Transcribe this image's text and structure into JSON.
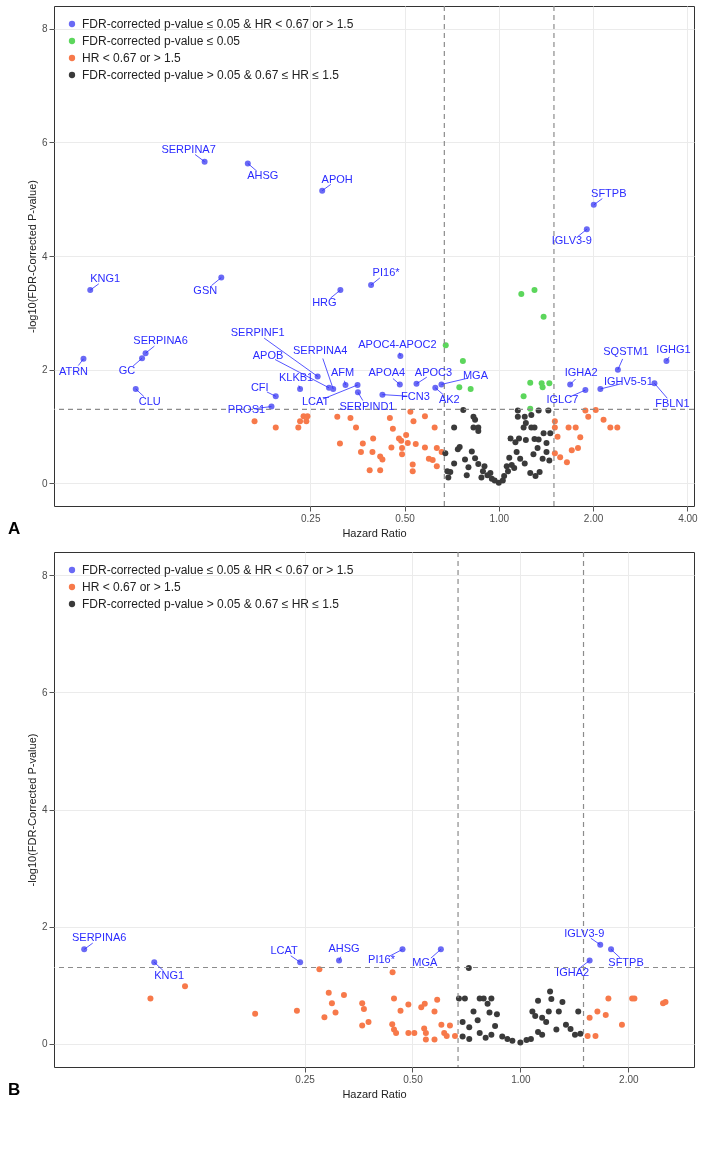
{
  "chart_data": [
    {
      "type": "scatter",
      "xlabel": "Hazard Ratio",
      "ylabel": "-log10(FDR-Corrected P-value)",
      "log": "x",
      "grid": true,
      "legend": "top left",
      "marker": "circle",
      "xlim": [
        0.038,
        4.2
      ],
      "ylim": [
        -0.4,
        8.4
      ],
      "xticks": [
        {
          "value": 0.25,
          "label": "0.25"
        },
        {
          "value": 0.5,
          "label": "0.50"
        },
        {
          "value": 1,
          "label": "1.00"
        },
        {
          "value": 2,
          "label": "2.00"
        },
        {
          "value": 4,
          "label": "4.00"
        }
      ],
      "yticks": [
        0,
        2,
        4,
        6,
        8
      ],
      "series": [
        {
          "name": "FDR-corrected p-value ≤ 0.05 & HR < 0.67 or > 1.5",
          "color": "#6a6af5",
          "x": [
            0.115,
            0.158,
            0.273,
            0.0496,
            0.13,
            0.312,
            0.391,
            0.0472,
            0.0745,
            0.0726,
            0.0693,
            0.485,
            0.264,
            0.287,
            0.296,
            0.232,
            0.324,
            0.354,
            0.355,
            0.194,
            0.188,
            0.425,
            0.483,
            0.546,
            0.627,
            0.656,
            2.01,
            1.91,
            2.4,
            3.43,
            1.69,
            1.89,
            2.11,
            3.14
          ],
          "values": [
            5.66,
            5.63,
            5.15,
            3.4,
            3.62,
            3.4,
            3.49,
            2.19,
            2.29,
            2.2,
            1.66,
            2.24,
            1.88,
            1.68,
            1.66,
            1.66,
            1.73,
            1.73,
            1.6,
            1.53,
            1.35,
            1.56,
            1.74,
            1.75,
            1.68,
            1.74,
            4.9,
            4.47,
            2.0,
            2.15,
            1.74,
            1.64,
            1.66,
            1.76
          ]
        },
        {
          "name": "FDR-corrected p-value ≤ 0.05",
          "color": "#5cd65c",
          "x": [
            0.677,
            0.768,
            0.748,
            0.813,
            1.18,
            1.3,
            1.39,
            1.26,
            1.37,
            1.38,
            1.45,
            1.2,
            1.26
          ],
          "values": [
            2.43,
            2.15,
            1.69,
            1.66,
            3.33,
            3.4,
            2.93,
            1.77,
            1.76,
            1.69,
            1.76,
            1.53,
            1.31
          ]
        },
        {
          "name": "HR < 0.67 or > 1.5",
          "color": "#f7794a",
          "x": [
            0.166,
            0.194,
            0.229,
            0.232,
            0.238,
            0.243,
            0.245,
            0.305,
            0.311,
            0.336,
            0.35,
            0.368,
            0.397,
            0.363,
            0.395,
            0.418,
            0.425,
            0.387,
            0.418,
            0.449,
            0.459,
            0.454,
            0.48,
            0.488,
            0.491,
            0.491,
            0.506,
            0.512,
            0.522,
            0.534,
            0.531,
            0.531,
            0.543,
            0.581,
            0.581,
            0.598,
            0.615,
            0.634,
            0.634,
            0.624,
            0.657,
            1.51,
            1.51,
            1.54,
            1.51,
            1.57,
            1.65,
            1.67,
            1.76,
            1.82,
            1.79,
            1.71,
            1.89,
            1.93,
            2.04,
            2.16,
            2.27,
            2.39
          ],
          "values": [
            1.09,
            0.98,
            0.98,
            1.09,
            1.18,
            1.09,
            1.18,
            1.17,
            0.7,
            1.15,
            0.98,
            0.7,
            0.79,
            0.55,
            0.55,
            0.47,
            0.42,
            0.23,
            0.23,
            1.15,
            0.96,
            0.63,
            0.79,
            0.75,
            0.62,
            0.51,
            0.85,
            0.71,
            1.26,
            1.09,
            0.33,
            0.21,
            0.69,
            1.18,
            0.63,
            0.43,
            0.41,
            0.62,
            0.3,
            0.98,
            0.55,
            1.09,
            0.98,
            0.82,
            0.53,
            0.46,
            0.37,
            0.98,
            0.98,
            0.81,
            0.62,
            0.58,
            1.28,
            1.17,
            1.29,
            1.12,
            0.98,
            0.98
          ]
        },
        {
          "name": "FDR-corrected p-value > 0.05 & 0.67 ≤ HR ≤ 1.5",
          "color": "#3a3a3a",
          "x": [
            0.77,
            0.72,
            0.83,
            0.84,
            0.83,
            0.86,
            0.86,
            0.75,
            0.74,
            0.675,
            0.685,
            0.7,
            0.79,
            0.82,
            0.84,
            0.86,
            0.89,
            0.92,
            0.95,
            1.0,
            1.15,
            1.15,
            1.21,
            1.27,
            1.34,
            1.44,
            1.3,
            1.2,
            1.22,
            1.27,
            1.09,
            1.13,
            1.16,
            1.22,
            1.3,
            1.34,
            1.39,
            1.42,
            1.46,
            1.33,
            1.29,
            1.17,
            1.1,
            1.07,
            1.04,
            1.12,
            1.21,
            1.31,
            1.26,
            1.38,
            1.42,
            0.72,
            0.78,
            0.9,
            0.94,
            0.97,
            1.03,
            1.06,
            1.08,
            1.14,
            0.8,
            0.88,
            0.69,
            1.35,
            1.45
          ],
          "values": [
            1.29,
            0.98,
            1.17,
            1.12,
            0.98,
            0.98,
            0.92,
            0.64,
            0.6,
            0.53,
            0.21,
            0.2,
            0.14,
            0.56,
            0.44,
            0.34,
            0.21,
            0.14,
            0.08,
            0.01,
            1.28,
            1.17,
            1.17,
            1.2,
            1.28,
            1.28,
            0.98,
            0.98,
            1.06,
            0.98,
            0.79,
            0.72,
            0.79,
            0.76,
            0.78,
            0.77,
            0.88,
            0.71,
            0.88,
            0.62,
            0.51,
            0.43,
            0.32,
            0.21,
            0.13,
            0.27,
            0.35,
            0.13,
            0.18,
            0.43,
            0.55,
            0.35,
            0.42,
            0.3,
            0.18,
            0.05,
            0.05,
            0.3,
            0.45,
            0.55,
            0.28,
            0.1,
            0.1,
            0.2,
            0.4
          ]
        }
      ],
      "ref_lines": [
        {
          "axis": "x",
          "value": 0.67,
          "line_style": "dashed",
          "color": "#8c8c8c"
        },
        {
          "axis": "x",
          "value": 1.5,
          "line_style": "dashed",
          "color": "#8c8c8c"
        },
        {
          "axis": "y",
          "value": 1.3,
          "line_style": "dashed",
          "color": "#8c8c8c"
        }
      ],
      "annotations": [
        {
          "text": "SERPINA7",
          "x": 0.115,
          "y": 5.66
        },
        {
          "text": "AHSG",
          "x": 0.158,
          "y": 5.63
        },
        {
          "text": "APOH",
          "x": 0.273,
          "y": 5.15
        },
        {
          "text": "KNG1",
          "x": 0.0496,
          "y": 3.4
        },
        {
          "text": "GSN",
          "x": 0.13,
          "y": 3.62
        },
        {
          "text": "HRG",
          "x": 0.312,
          "y": 3.4
        },
        {
          "text": "PI16*",
          "x": 0.391,
          "y": 3.49
        },
        {
          "text": "ATRN",
          "x": 0.0472,
          "y": 2.19
        },
        {
          "text": "SERPINA6",
          "x": 0.0745,
          "y": 2.29
        },
        {
          "text": "GC",
          "x": 0.0726,
          "y": 2.2
        },
        {
          "text": "CLU",
          "x": 0.0693,
          "y": 1.66
        },
        {
          "text": "APOC4-APOC2",
          "x": 0.485,
          "y": 2.24
        },
        {
          "text": "SERPINF1",
          "x": 0.264,
          "y": 1.88
        },
        {
          "text": "APOB",
          "x": 0.287,
          "y": 1.68
        },
        {
          "text": "SERPINA4",
          "x": 0.296,
          "y": 1.66
        },
        {
          "text": "KLKB1",
          "x": 0.232,
          "y": 1.66
        },
        {
          "text": "AFM",
          "x": 0.324,
          "y": 1.73
        },
        {
          "text": "LCAT",
          "x": 0.354,
          "y": 1.73
        },
        {
          "text": "SERPIND1",
          "x": 0.355,
          "y": 1.6
        },
        {
          "text": "CFI",
          "x": 0.194,
          "y": 1.53
        },
        {
          "text": "PROS1",
          "x": 0.188,
          "y": 1.35
        },
        {
          "text": "FCN3",
          "x": 0.425,
          "y": 1.56
        },
        {
          "text": "APOA4",
          "x": 0.483,
          "y": 1.74
        },
        {
          "text": "APOC3",
          "x": 0.546,
          "y": 1.75
        },
        {
          "text": "AK2",
          "x": 0.627,
          "y": 1.68
        },
        {
          "text": "MGA",
          "x": 0.656,
          "y": 1.74
        },
        {
          "text": "SFTPB",
          "x": 2.01,
          "y": 4.9
        },
        {
          "text": "IGLV3-9",
          "x": 1.91,
          "y": 4.47
        },
        {
          "text": "SQSTM1",
          "x": 2.4,
          "y": 2.0
        },
        {
          "text": "IGHG1",
          "x": 3.43,
          "y": 2.15
        },
        {
          "text": "IGHA2",
          "x": 1.69,
          "y": 1.74
        },
        {
          "text": "IGLC7",
          "x": 1.89,
          "y": 1.64
        },
        {
          "text": "IGHV5-51",
          "x": 2.11,
          "y": 1.66
        },
        {
          "text": "FBLN1",
          "x": 3.14,
          "y": 1.76
        },
        "A"
      ]
    },
    {
      "type": "scatter",
      "xlabel": "Hazard Ratio",
      "ylabel": "-log10(FDR-Corrected P-value)",
      "log": "x",
      "grid": true,
      "legend": "top left",
      "marker": "circle",
      "xlim": [
        0.05,
        3.05
      ],
      "ylim": [
        -0.4,
        8.4
      ],
      "xticks": [
        {
          "value": 0.25,
          "label": "0.25"
        },
        {
          "value": 0.5,
          "label": "0.50"
        },
        {
          "value": 1,
          "label": "1.00"
        },
        {
          "value": 2,
          "label": "2.00"
        }
      ],
      "yticks": [
        0,
        2,
        4,
        6,
        8
      ],
      "series": [
        {
          "name": "FDR-corrected p-value ≤ 0.05 & HR < 0.67 or > 1.5",
          "color": "#6a6af5",
          "x": [
            0.0607,
            0.0952,
            0.243,
            0.312,
            0.469,
            0.6,
            1.67,
            1.79,
            1.56
          ],
          "values": [
            1.61,
            1.39,
            1.39,
            1.42,
            1.61,
            1.61,
            1.69,
            1.61,
            1.42
          ]
        },
        {
          "name": "HR < 0.67 or > 1.5",
          "color": "#f7794a",
          "x": [
            0.0929,
            0.116,
            0.182,
            0.238,
            0.275,
            0.292,
            0.298,
            0.284,
            0.305,
            0.322,
            0.362,
            0.366,
            0.362,
            0.377,
            0.44,
            0.444,
            0.463,
            0.487,
            0.439,
            0.444,
            0.45,
            0.487,
            0.506,
            0.529,
            0.541,
            0.576,
            0.586,
            0.539,
            0.545,
            0.545,
            0.576,
            0.602,
            0.613,
            0.636,
            0.623,
            0.657,
            1.56,
            1.54,
            1.62,
            1.64,
            1.73,
            1.76,
            1.92,
            2.05,
            2.08,
            2.5,
            2.54
          ],
          "values": [
            0.77,
            0.98,
            0.51,
            0.56,
            1.27,
            0.87,
            0.69,
            0.45,
            0.53,
            0.83,
            0.69,
            0.59,
            0.31,
            0.37,
            1.22,
            0.77,
            0.56,
            0.67,
            0.33,
            0.24,
            0.18,
            0.18,
            0.18,
            0.62,
            0.68,
            0.55,
            0.75,
            0.26,
            0.07,
            0.18,
            0.07,
            0.32,
            0.18,
            0.31,
            0.13,
            0.13,
            0.44,
            0.13,
            0.13,
            0.55,
            0.49,
            0.77,
            0.32,
            0.77,
            0.77,
            0.69,
            0.71
          ]
        },
        {
          "name": "FDR-corrected p-value > 0.05 & 0.67 ≤ HR ≤ 1.5",
          "color": "#3a3a3a",
          "x": [
            0.718,
            0.674,
            0.7,
            0.77,
            0.79,
            0.83,
            0.81,
            0.82,
            0.74,
            0.76,
            0.86,
            0.69,
            0.72,
            0.77,
            0.83,
            0.89,
            0.95,
            1.0,
            1.07,
            1.15,
            1.21,
            1.22,
            1.12,
            1.08,
            1.2,
            1.15,
            1.1,
            1.28,
            1.31,
            1.45,
            1.34,
            1.42,
            1.26,
            1.47,
            0.69,
            0.72,
            1.18,
            0.8,
            0.92,
            1.04,
            1.12,
            1.38,
            0.85
          ],
          "values": [
            1.29,
            0.77,
            0.77,
            0.77,
            0.77,
            0.77,
            0.68,
            0.53,
            0.55,
            0.4,
            0.5,
            0.37,
            0.28,
            0.18,
            0.15,
            0.12,
            0.05,
            0.02,
            0.08,
            0.15,
            0.89,
            0.76,
            0.73,
            0.55,
            0.55,
            0.44,
            0.47,
            0.55,
            0.71,
            0.55,
            0.32,
            0.15,
            0.24,
            0.17,
            0.12,
            0.08,
            0.37,
            0.1,
            0.08,
            0.06,
            0.2,
            0.25,
            0.3
          ]
        }
      ],
      "ref_lines": [
        {
          "axis": "x",
          "value": 0.67,
          "line_style": "dashed",
          "color": "#8c8c8c"
        },
        {
          "axis": "x",
          "value": 1.5,
          "line_style": "dashed",
          "color": "#8c8c8c"
        },
        {
          "axis": "y",
          "value": 1.3,
          "line_style": "dashed",
          "color": "#8c8c8c"
        }
      ],
      "annotations": [
        {
          "text": "SERPINA6",
          "x": 0.0607,
          "y": 1.61
        },
        {
          "text": "KNG1",
          "x": 0.0952,
          "y": 1.39
        },
        {
          "text": "LCAT",
          "x": 0.243,
          "y": 1.39
        },
        {
          "text": "AHSG",
          "x": 0.312,
          "y": 1.42
        },
        {
          "text": "PI16*",
          "x": 0.469,
          "y": 1.61
        },
        {
          "text": "MGA",
          "x": 0.6,
          "y": 1.61
        },
        {
          "text": "IGLV3-9",
          "x": 1.67,
          "y": 1.69
        },
        {
          "text": "SFTPB",
          "x": 1.79,
          "y": 1.61
        },
        {
          "text": "IGHA2",
          "x": 1.56,
          "y": 1.42
        },
        "B"
      ]
    }
  ]
}
